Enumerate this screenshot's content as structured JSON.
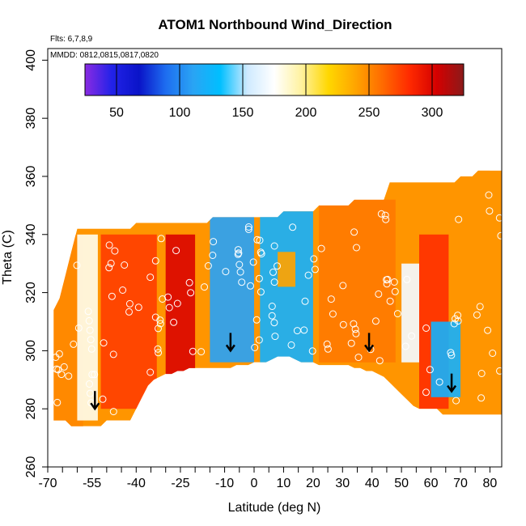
{
  "chart_data": {
    "type": "heatmap",
    "title": "ATOM1 Northbound Wind_Direction",
    "xlabel": "Latitude (deg N)",
    "ylabel": "Theta (C)",
    "annotations": [
      "Flts: 6,7,8,9",
      "MMDD: 0812,0815,0817,0820"
    ],
    "xlim": [
      -70,
      84
    ],
    "ylim": [
      260,
      404
    ],
    "x_ticks": [
      -70,
      -55,
      -40,
      -25,
      -10,
      0,
      10,
      20,
      30,
      40,
      50,
      60,
      70,
      80
    ],
    "x_tick_labels": [
      "-70",
      "-55",
      "-40",
      "-25",
      "-10",
      "0",
      "10",
      "20",
      "30",
      "40",
      "50",
      "60",
      "70",
      "80"
    ],
    "x_minor_ticks": [
      -65,
      -60,
      -50,
      -45,
      -35,
      -30,
      -20,
      -15,
      -5,
      5,
      15,
      25,
      35,
      45,
      55,
      65,
      75
    ],
    "y_ticks": [
      260,
      280,
      300,
      320,
      340,
      360,
      380,
      400
    ],
    "y_tick_labels": [
      "260",
      "280",
      "300",
      "320",
      "340",
      "360",
      "380",
      "400"
    ],
    "colorbar": {
      "range": [
        25,
        325
      ],
      "ticks": [
        50,
        100,
        150,
        200,
        250,
        300
      ],
      "tick_labels": [
        "50",
        "100",
        "150",
        "200",
        "250",
        "300"
      ],
      "colors": [
        "#8a2be2",
        "#2222e8",
        "#0a14c8",
        "#1e6ef0",
        "#2aa4f4",
        "#00bfff",
        "#cfeaff",
        "#ffffff",
        "#fff2a0",
        "#ffd700",
        "#ffa500",
        "#ff6a00",
        "#ff2a00",
        "#d40000",
        "#8b1a1a"
      ]
    },
    "surface": {
      "x_start": -68,
      "x_step": 2,
      "upper_boundary": [
        314,
        318,
        326,
        334,
        342,
        342,
        342,
        342,
        342,
        342,
        342,
        342,
        342,
        342,
        344,
        344,
        344,
        344,
        344,
        344,
        344,
        344,
        344,
        344,
        344,
        344,
        344,
        346,
        346,
        346,
        346,
        346,
        346,
        346,
        346,
        346,
        346,
        346,
        346,
        348,
        348,
        348,
        348,
        348,
        348,
        350,
        350,
        350,
        350,
        350,
        350,
        352,
        352,
        352,
        352,
        352,
        352,
        358,
        358,
        358,
        358,
        358,
        358,
        358,
        358,
        358,
        358,
        358,
        358,
        360,
        360,
        360,
        362,
        362,
        362,
        362,
        362
      ],
      "lower_boundary": [
        276,
        276,
        276,
        274,
        274,
        274,
        274,
        274,
        274,
        276,
        276,
        276,
        276,
        276,
        280,
        284,
        288,
        290,
        291,
        292,
        292,
        293,
        293,
        294,
        294,
        294,
        294,
        294,
        294,
        294,
        294,
        295,
        295,
        295,
        296,
        296,
        296,
        297,
        298,
        298,
        298,
        297,
        296,
        296,
        296,
        295,
        295,
        295,
        295,
        295,
        295,
        294,
        294,
        293,
        293,
        292,
        291,
        289,
        287,
        285,
        283,
        281,
        280,
        280,
        280,
        280,
        278,
        278,
        278,
        278,
        278,
        278,
        278,
        278,
        278,
        278,
        278
      ],
      "regions": [
        {
          "x": [
            -70,
            -58
          ],
          "y": [
            272,
            340
          ],
          "direction": 250
        },
        {
          "x": [
            -60,
            -53
          ],
          "y": [
            276,
            340
          ],
          "direction": 180
        },
        {
          "x": [
            -52,
            -33
          ],
          "y": [
            280,
            340
          ],
          "direction": 275
        },
        {
          "x": [
            -30,
            -20
          ],
          "y": [
            290,
            340
          ],
          "direction": 300
        },
        {
          "x": [
            -15,
            0
          ],
          "y": [
            296,
            346
          ],
          "direction": 110
        },
        {
          "x": [
            2,
            20
          ],
          "y": [
            296,
            348
          ],
          "direction": 120
        },
        {
          "x": [
            8,
            14
          ],
          "y": [
            322,
            334
          ],
          "direction": 240
        },
        {
          "x": [
            22,
            48
          ],
          "y": [
            296,
            352
          ],
          "direction": 255
        },
        {
          "x": [
            50,
            56
          ],
          "y": [
            296,
            330
          ],
          "direction": 170
        },
        {
          "x": [
            56,
            66
          ],
          "y": [
            280,
            340
          ],
          "direction": 280
        },
        {
          "x": [
            60,
            70
          ],
          "y": [
            284,
            310
          ],
          "direction": 120
        },
        {
          "x": [
            70,
            80
          ],
          "y": [
            282,
            362
          ],
          "direction": 245
        }
      ]
    },
    "tropopause_arrows": [
      {
        "x": -54,
        "y": 280
      },
      {
        "x": -8,
        "y": 300
      },
      {
        "x": 39,
        "y": 300
      },
      {
        "x": 67,
        "y": 286
      }
    ],
    "grid": false,
    "legend": "colorbar-top"
  }
}
